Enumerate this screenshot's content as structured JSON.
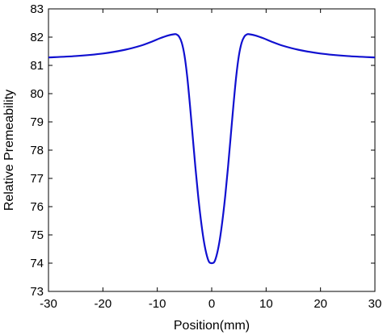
{
  "chart_data": {
    "type": "line",
    "title": "",
    "xlabel": "Position(mm)",
    "ylabel": "Relative Premeability",
    "xlim": [
      -30,
      30
    ],
    "ylim": [
      73,
      83
    ],
    "xticks": [
      -30,
      -20,
      -10,
      0,
      10,
      20,
      30
    ],
    "yticks": [
      73,
      74,
      75,
      76,
      77,
      78,
      79,
      80,
      81,
      82,
      83
    ],
    "grid": false,
    "line_color": "#1010d0",
    "series": [
      {
        "x": [
          -30,
          -25,
          -20,
          -16,
          -13,
          -11,
          -9.5,
          -8,
          -7,
          -6.5,
          -6,
          -5.5,
          -5,
          -4.5,
          -4,
          -3.5,
          -3,
          -2.5,
          -2,
          -1.5,
          -1,
          -0.5,
          0,
          0.5,
          1,
          1.5,
          2,
          2.5,
          3,
          3.5,
          4,
          4.5,
          5,
          5.5,
          6,
          6.5,
          7,
          8,
          9.5,
          11,
          13,
          16,
          20,
          25,
          30
        ],
        "y": [
          81.28,
          81.33,
          81.42,
          81.55,
          81.7,
          81.84,
          81.96,
          82.06,
          82.1,
          82.1,
          82.02,
          81.8,
          81.35,
          80.6,
          79.6,
          78.5,
          77.4,
          76.4,
          75.55,
          74.85,
          74.35,
          74.05,
          74.0,
          74.05,
          74.35,
          74.85,
          75.55,
          76.4,
          77.4,
          78.5,
          79.6,
          80.6,
          81.35,
          81.8,
          82.02,
          82.1,
          82.1,
          82.06,
          81.96,
          81.84,
          81.7,
          81.55,
          81.42,
          81.33,
          81.28
        ]
      }
    ]
  }
}
